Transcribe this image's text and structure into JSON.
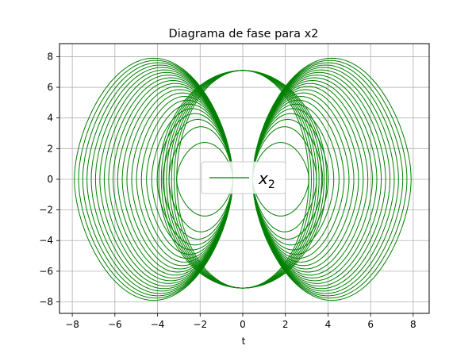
{
  "chart_data": {
    "type": "line",
    "title": "Diagrama de fase para x2",
    "xlabel": "t",
    "ylabel": "",
    "xlim": [
      -8.6,
      8.75
    ],
    "ylim": [
      -8.75,
      8.85
    ],
    "xticks": [
      -8,
      -6,
      -4,
      -2,
      0,
      2,
      4,
      6,
      8
    ],
    "yticks": [
      -8,
      -6,
      -4,
      -2,
      0,
      2,
      4,
      6,
      8
    ],
    "grid": true,
    "legend": {
      "position": "center",
      "entries": [
        "x2"
      ]
    },
    "series": [
      {
        "name": "x2",
        "color": "#008000",
        "description": "phase trajectory: nested loops through (0, ±7.1), outer edge near x=±7.9, inner turning points near x=±3.1",
        "outer_amplitude": 7.9,
        "inner_amplitude": 3.1,
        "saddle_points": [
          [
            0,
            7.1
          ],
          [
            0,
            -7.1
          ]
        ]
      }
    ]
  }
}
